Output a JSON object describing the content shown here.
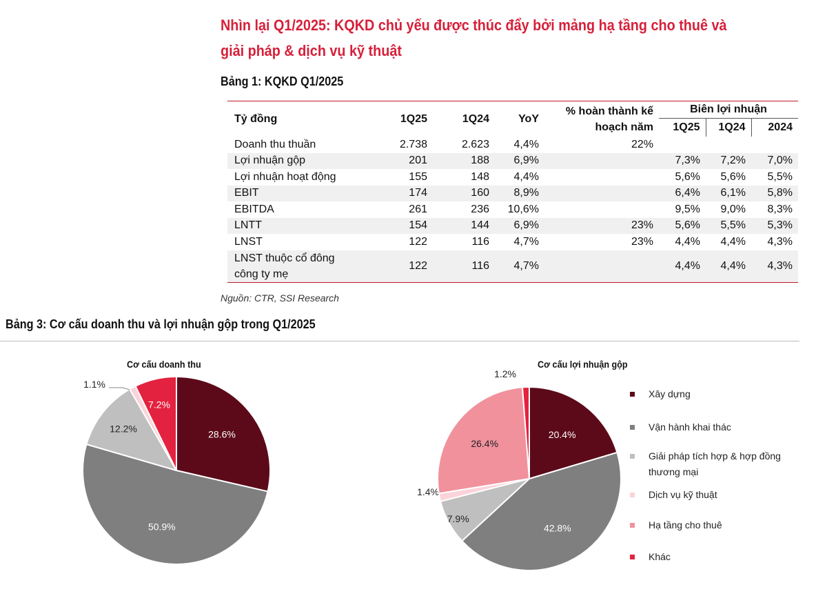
{
  "headline": "Nhìn lại Q1/2025: KQKD chủ yếu được thúc đẩy bởi mảng hạ tầng cho thuê và giải pháp & dịch vụ kỹ thuật",
  "table1": {
    "title": "Bảng 1: KQKD Q1/2025",
    "headers": {
      "unit": "Tỷ đồng",
      "q125": "1Q25",
      "q124": "1Q24",
      "yoy": "YoY",
      "plan": "% hoàn thành kế hoạch năm",
      "margin_group": "Biên lợi nhuận",
      "m_q125": "1Q25",
      "m_q124": "1Q24",
      "m_2024": "2024"
    },
    "rows": [
      {
        "label": "Doanh thu thuần",
        "q125": "2.738",
        "q124": "2.623",
        "yoy": "4,4%",
        "plan": "22%",
        "m1": "",
        "m2": "",
        "m3": ""
      },
      {
        "label": "Lợi nhuận gộp",
        "q125": "201",
        "q124": "188",
        "yoy": "6,9%",
        "plan": "",
        "m1": "7,3%",
        "m2": "7,2%",
        "m3": "7,0%"
      },
      {
        "label": "Lợi nhuận hoạt động",
        "q125": "155",
        "q124": "148",
        "yoy": "4,4%",
        "plan": "",
        "m1": "5,6%",
        "m2": "5,6%",
        "m3": "5,5%"
      },
      {
        "label": "EBIT",
        "q125": "174",
        "q124": "160",
        "yoy": "8,9%",
        "plan": "",
        "m1": "6,4%",
        "m2": "6,1%",
        "m3": "5,8%"
      },
      {
        "label": "EBITDA",
        "q125": "261",
        "q124": "236",
        "yoy": "10,6%",
        "plan": "",
        "m1": "9,5%",
        "m2": "9,0%",
        "m3": "8,3%"
      },
      {
        "label": "LNTT",
        "q125": "154",
        "q124": "144",
        "yoy": "6,9%",
        "plan": "23%",
        "m1": "5,6%",
        "m2": "5,5%",
        "m3": "5,3%"
      },
      {
        "label": "LNST",
        "q125": "122",
        "q124": "116",
        "yoy": "4,7%",
        "plan": "23%",
        "m1": "4,4%",
        "m2": "4,4%",
        "m3": "4,3%"
      },
      {
        "label_line1": "LNST thuộc cổ đông",
        "label_line2": "công ty mẹ",
        "q125": "122",
        "q124": "116",
        "yoy": "4,7%",
        "plan": "",
        "m1": "4,4%",
        "m2": "4,4%",
        "m3": "4,3%"
      }
    ],
    "source": "Nguồn: CTR, SSI Research"
  },
  "section3": {
    "title": "Bảng 3: Cơ cấu doanh thu và lợi nhuận gộp trong Q1/2025"
  },
  "colors": {
    "xay_dung": "#5c0a19",
    "van_hanh": "#7f7f7f",
    "giai_phap": "#bfbfbf",
    "dich_vu": "#fbd3d9",
    "ha_tang": "#f0919c",
    "khac": "#e3223f",
    "accent": "#d6203a"
  },
  "legend": [
    {
      "label": "Xây dựng"
    },
    {
      "label": "Vận hành khai thác"
    },
    {
      "label": "Giải pháp tích hợp & hợp đồng thương mại"
    },
    {
      "label": "Dịch vụ kỹ thuật"
    },
    {
      "label": "Hạ tầng cho thuê"
    },
    {
      "label": "Khác"
    }
  ],
  "chart_data": [
    {
      "type": "pie",
      "title": "Cơ cấu doanh thu",
      "categories": [
        "Xây dựng",
        "Vận hành khai thác",
        "Giải pháp tích hợp & hợp đồng thương mại",
        "Dịch vụ kỹ thuật",
        "Hạ tầng cho thuê",
        "Khác"
      ],
      "values": [
        28.6,
        50.9,
        12.2,
        1.1,
        0,
        7.2
      ],
      "labels": [
        "28.6%",
        "50.9%",
        "12.2%",
        "1.1%",
        "",
        "7.2%"
      ]
    },
    {
      "type": "pie",
      "title": "Cơ cấu lợi nhuận gộp",
      "categories": [
        "Xây dựng",
        "Vận hành khai thác",
        "Giải pháp tích hợp & hợp đồng thương mại",
        "Dịch vụ kỹ thuật",
        "Hạ tầng cho thuê",
        "Khác"
      ],
      "values": [
        20.4,
        42.8,
        7.9,
        1.4,
        26.4,
        1.2
      ],
      "labels": [
        "20.4%",
        "42.8%",
        "7.9%",
        "1.4%",
        "26.4%",
        "1.2%"
      ]
    }
  ]
}
